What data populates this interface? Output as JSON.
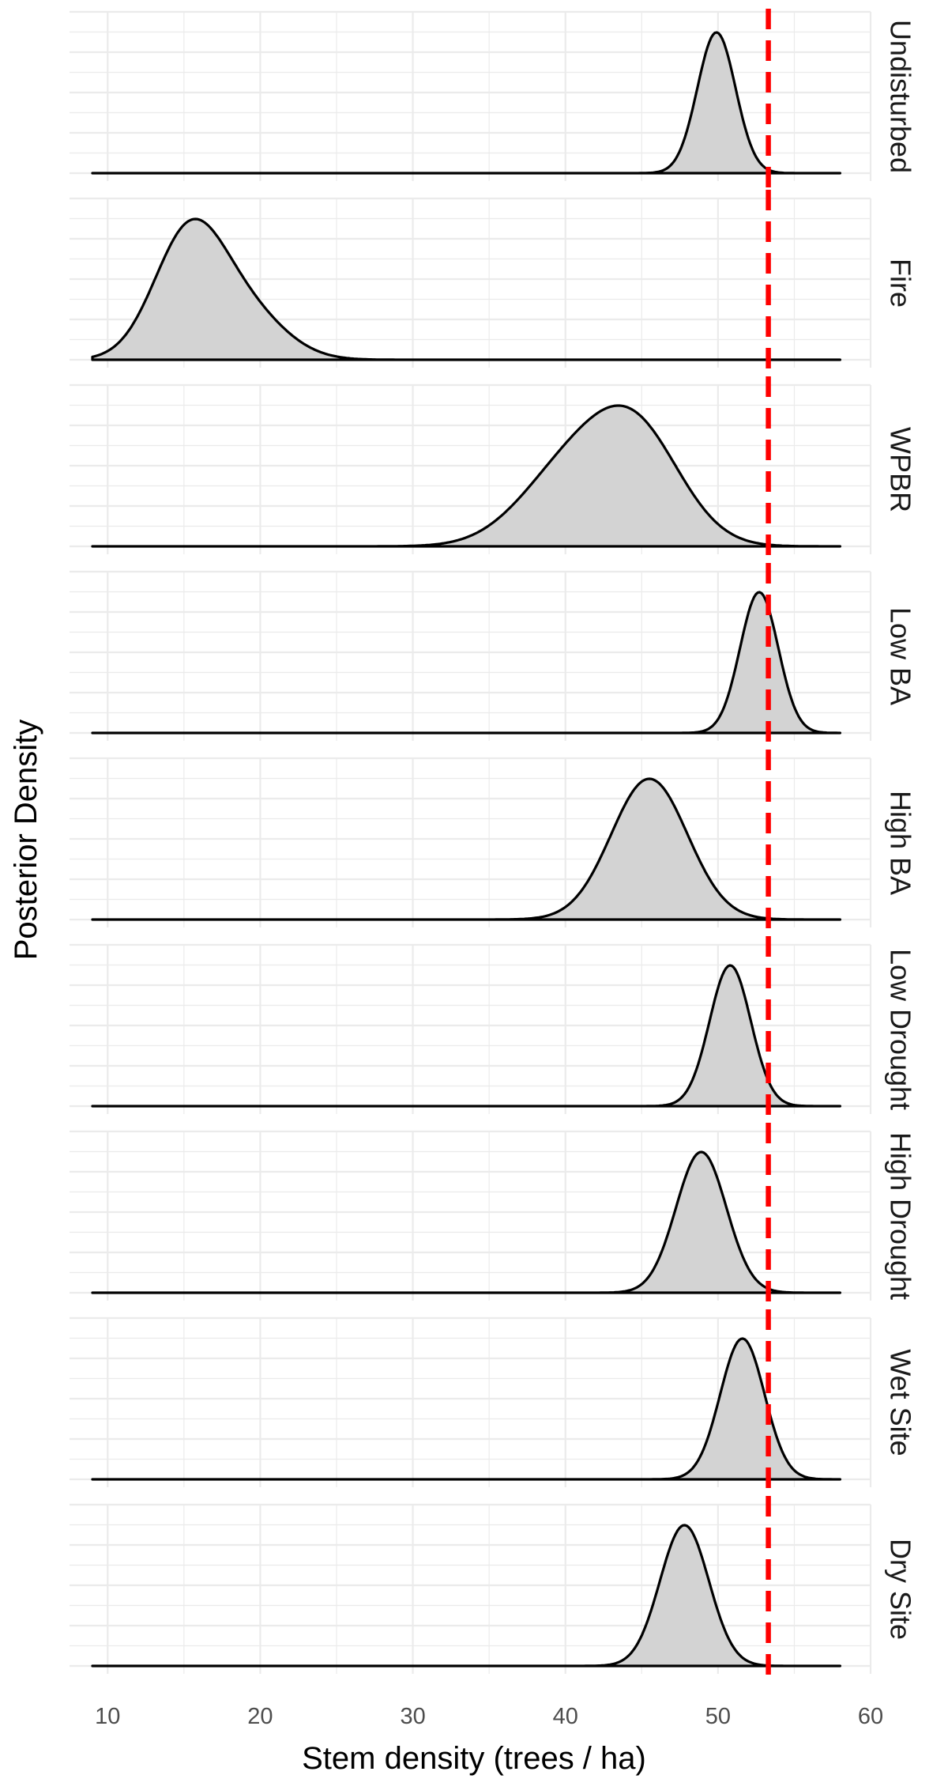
{
  "chart_data": {
    "type": "area",
    "xlabel": "Stem density (trees / ha)",
    "ylabel": "Posterior Density",
    "xlim": [
      7.5,
      60
    ],
    "x_ticks": [
      "10",
      "20",
      "30",
      "40",
      "50",
      "60"
    ],
    "x_tick_values": [
      10,
      20,
      30,
      40,
      50,
      60
    ],
    "x_range": [
      9,
      58
    ],
    "reference_line": {
      "x": 53.3,
      "color": "#ff0000",
      "style": "dashed"
    },
    "fill_color": "#d3d3d3",
    "line_color": "#000000",
    "grid": true,
    "panels": [
      {
        "label": "Undisturbed",
        "components": [
          {
            "mean": 49.9,
            "sd": 1.25,
            "weight": 1.0
          }
        ]
      },
      {
        "label": "Fire",
        "components": [
          {
            "mean": 15.3,
            "sd": 2.3,
            "weight": 0.7
          },
          {
            "mean": 19.0,
            "sd": 2.6,
            "weight": 0.3
          }
        ]
      },
      {
        "label": "WPBR",
        "components": [
          {
            "mean": 44.6,
            "sd": 3.0,
            "weight": 0.6
          },
          {
            "mean": 40.0,
            "sd": 3.2,
            "weight": 0.4
          }
        ]
      },
      {
        "label": "Low BA",
        "components": [
          {
            "mean": 52.7,
            "sd": 1.25,
            "weight": 1.0
          }
        ]
      },
      {
        "label": "High BA",
        "components": [
          {
            "mean": 45.5,
            "sd": 2.5,
            "weight": 1.0
          }
        ]
      },
      {
        "label": "Low Drought",
        "components": [
          {
            "mean": 50.8,
            "sd": 1.35,
            "weight": 1.0
          }
        ]
      },
      {
        "label": "High Drought",
        "components": [
          {
            "mean": 48.9,
            "sd": 1.65,
            "weight": 1.0
          }
        ]
      },
      {
        "label": "Wet Site",
        "components": [
          {
            "mean": 51.6,
            "sd": 1.45,
            "weight": 1.0
          }
        ]
      },
      {
        "label": "Dry Site",
        "components": [
          {
            "mean": 47.8,
            "sd": 1.6,
            "weight": 1.0
          }
        ]
      }
    ]
  }
}
